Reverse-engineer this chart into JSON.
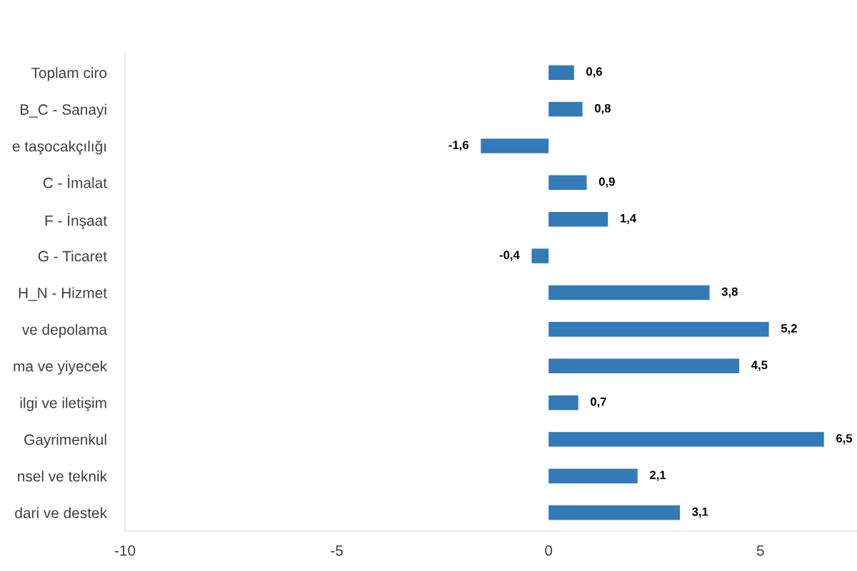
{
  "chart_data": {
    "type": "bar",
    "orientation": "horizontal",
    "categories": [
      "Toplam ciro",
      "B_C - Sanayi",
      "e taşocakçılığı",
      "C - İmalat",
      "F - İnşaat",
      "G - Ticaret",
      "H_N - Hizmet",
      "ve depolama",
      "ma ve yiyecek",
      "ilgi ve iletişim",
      "Gayrimenkul",
      "nsel ve teknik",
      "dari ve destek"
    ],
    "values": [
      0.6,
      0.8,
      -1.6,
      0.9,
      1.4,
      -0.4,
      3.8,
      5.2,
      4.5,
      0.7,
      6.5,
      2.1,
      3.1
    ],
    "value_labels": [
      "0,6",
      "0,8",
      "-1,6",
      "0,9",
      "1,4",
      "-0,4",
      "3,8",
      "5,2",
      "4,5",
      "0,7",
      "6,5",
      "2,1",
      "3,1"
    ],
    "color": "#337ab7",
    "xlim": [
      -10,
      7.28
    ],
    "xticks": [
      -10,
      -5,
      0,
      5
    ],
    "grid": false,
    "legend": false
  }
}
